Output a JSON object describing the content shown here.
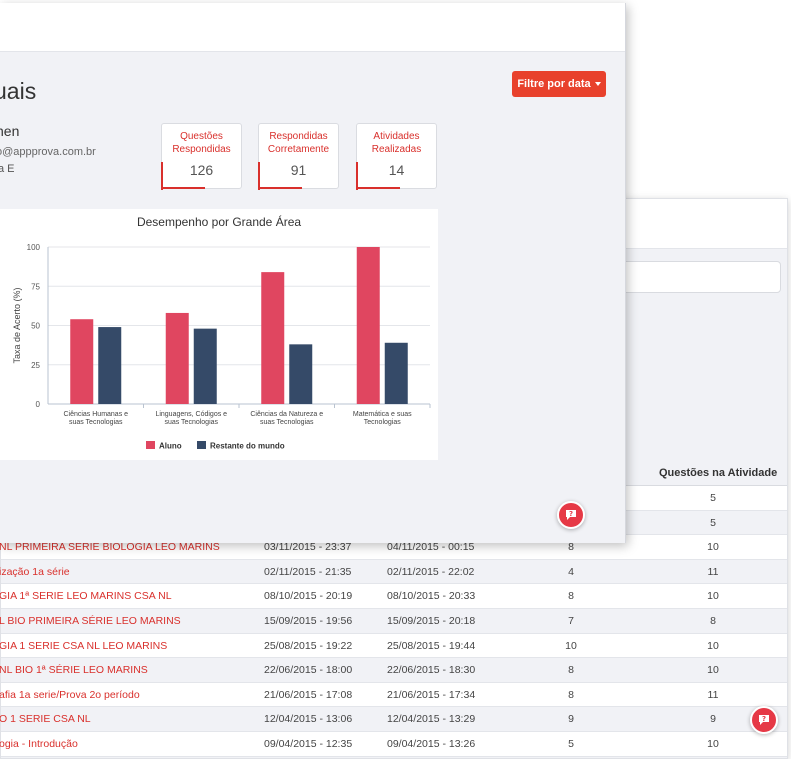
{
  "front": {
    "title": "uais",
    "filter_button": "Filtre por data",
    "user": {
      "name": "nen",
      "email": "o@appprova.com.br",
      "class": "a E"
    },
    "stats": [
      {
        "label_line1": "Questões",
        "label_line2": "Respondidas",
        "value": "126"
      },
      {
        "label_line1": "Respondidas",
        "label_line2": "Corretamente",
        "value": "91"
      },
      {
        "label_line1": "Atividades",
        "label_line2": "Realizadas",
        "value": "14"
      }
    ]
  },
  "back": {
    "column_header": "Questões na Atividade",
    "rows": [
      {
        "name": "",
        "start": "",
        "end": "",
        "answered": "",
        "questions": "5"
      },
      {
        "name": "",
        "start": "",
        "end": "",
        "answered": "",
        "questions": "5"
      },
      {
        "name": "NL PRIMEIRA SERIE BIOLOGIA LEO MARINS",
        "start": "03/11/2015 - 23:37",
        "end": "04/11/2015 - 00:15",
        "answered": "8",
        "questions": "10"
      },
      {
        "name": "ização 1a série",
        "start": "02/11/2015 - 21:35",
        "end": "02/11/2015 - 22:02",
        "answered": "4",
        "questions": "11"
      },
      {
        "name": "GIA 1ª SERIE LEO MARINS CSA NL",
        "start": "08/10/2015 - 20:19",
        "end": "08/10/2015 - 20:33",
        "answered": "8",
        "questions": "10"
      },
      {
        "name": "L BIO PRIMEIRA SÉRIE LEO MARINS",
        "start": "15/09/2015 - 19:56",
        "end": "15/09/2015 - 20:18",
        "answered": "7",
        "questions": "8"
      },
      {
        "name": "GIA 1 SERIE CSA NL LEO MARINS",
        "start": "25/08/2015 - 19:22",
        "end": "25/08/2015 - 19:44",
        "answered": "10",
        "questions": "10"
      },
      {
        "name": "NL BIO 1ª SÉRIE LEO MARINS",
        "start": "22/06/2015 - 18:00",
        "end": "22/06/2015 - 18:30",
        "answered": "8",
        "questions": "10"
      },
      {
        "name": "afia 1a serie/Prova 2o período",
        "start": "21/06/2015 - 17:08",
        "end": "21/06/2015 - 17:34",
        "answered": "8",
        "questions": "11"
      },
      {
        "name": "O 1 SERIE CSA NL",
        "start": "12/04/2015 - 13:06",
        "end": "12/04/2015 - 13:29",
        "answered": "9",
        "questions": "9"
      },
      {
        "name": "ogia - Introdução",
        "start": "09/04/2015 - 12:35",
        "end": "09/04/2015 - 13:26",
        "answered": "5",
        "questions": "10"
      }
    ]
  },
  "colors": {
    "accent": "#d9302c",
    "button": "#e8412c",
    "aluno": "#e04660",
    "restante": "#354a68"
  },
  "icons": {
    "help": "chat-question-icon"
  },
  "chart_data": {
    "type": "bar",
    "title": "Desempenho por Grande Área",
    "xlabel": "",
    "ylabel": "Taxa de Acerto (%)",
    "ylim": [
      0,
      100
    ],
    "yticks": [
      "0",
      "25",
      "50",
      "75",
      "100"
    ],
    "categories": [
      [
        "Ciências Humanas e",
        "suas Tecnologias"
      ],
      [
        "Linguagens, Códigos e",
        "suas Tecnologias"
      ],
      [
        "Ciências da Natureza e",
        "suas Tecnologias"
      ],
      [
        "Matemática e suas",
        "Tecnologias"
      ]
    ],
    "series": [
      {
        "name": "Aluno",
        "values": [
          54,
          58,
          84,
          100
        ]
      },
      {
        "name": "Restante do mundo",
        "values": [
          49,
          48,
          38,
          39
        ]
      }
    ],
    "legend": "bottom",
    "grid": true
  }
}
